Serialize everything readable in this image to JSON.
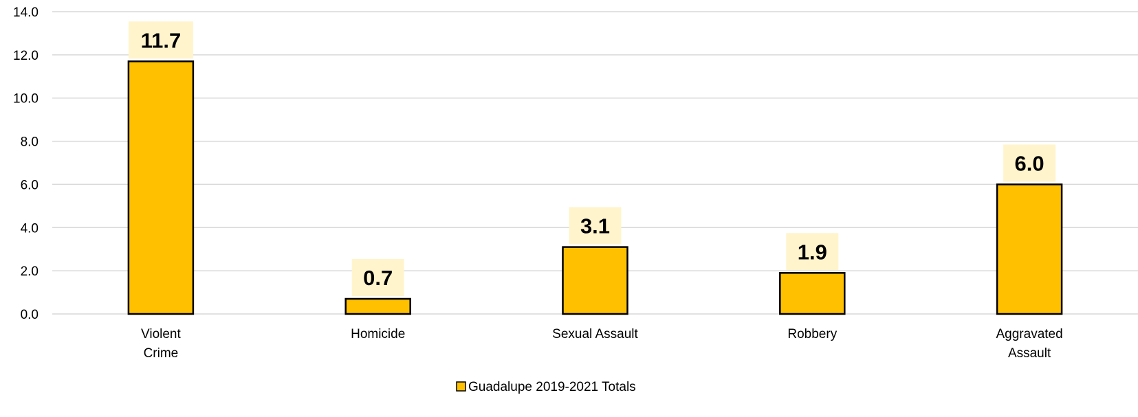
{
  "chart_data": {
    "type": "bar",
    "categories": [
      [
        "Violent",
        "Crime"
      ],
      [
        "Homicide"
      ],
      [
        "Sexual Assault"
      ],
      [
        "Robbery"
      ],
      [
        "Aggravated",
        "Assault"
      ]
    ],
    "series": [
      {
        "name": "Guadalupe 2019-2021 Totals",
        "values": [
          11.7,
          0.7,
          3.1,
          1.9,
          6.0
        ],
        "value_labels": [
          "11.7",
          "0.7",
          "3.1",
          "1.9",
          "6.0"
        ]
      }
    ],
    "ylim": [
      0,
      14
    ],
    "yticks": [
      0,
      2,
      4,
      6,
      8,
      10,
      12,
      14
    ],
    "ytick_labels": [
      "0.0",
      "2.0",
      "4.0",
      "6.0",
      "8.0",
      "10.0",
      "12.0",
      "14.0"
    ],
    "grid": true,
    "legend_position": "bottom-center",
    "colors": {
      "bar_fill": "#FFC000",
      "bar_stroke": "#000000",
      "label_background": "#FFF4CC",
      "gridline": "#D9D9D9"
    }
  }
}
